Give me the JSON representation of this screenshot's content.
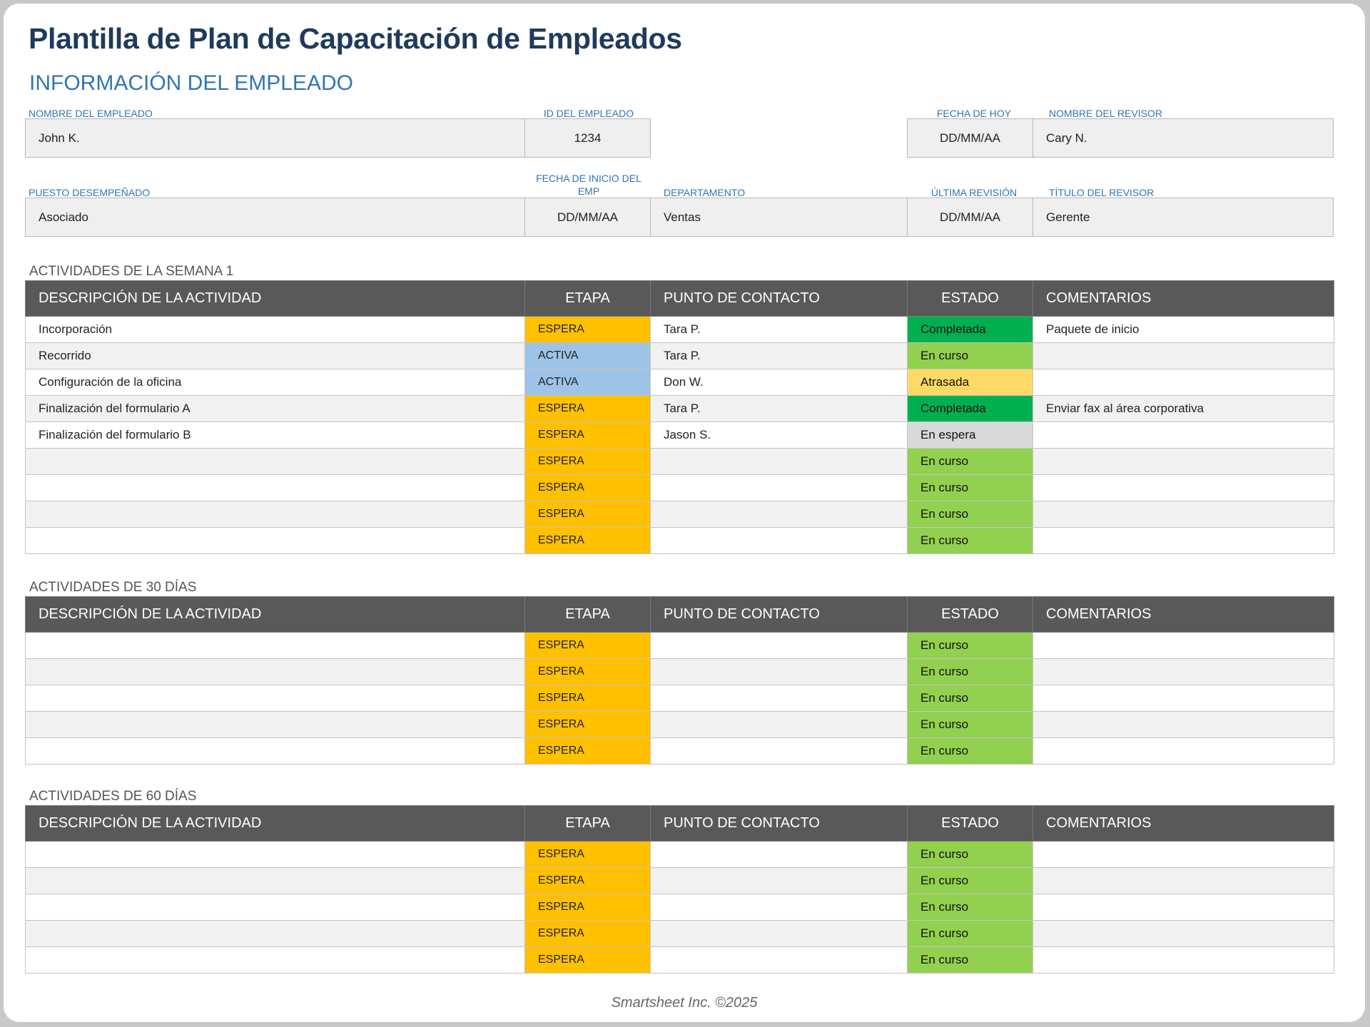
{
  "title": "Plantilla de Plan de Capacitación de Empleados",
  "employee_info": {
    "section_title": "INFORMACIÓN DEL EMPLEADO",
    "labels": {
      "employee_name": "NOMBRE DEL EMPLEADO",
      "employee_id": "ID DEL EMPLEADO",
      "today_date": "FECHA DE HOY",
      "reviewer_name": "NOMBRE DEL REVISOR",
      "position": "PUESTO DESEMPEÑADO",
      "start_date_line1": "FECHA DE INICIO DEL",
      "start_date_line2": "EMP",
      "department": "DEPARTAMENTO",
      "last_review": "ÚLTIMA REVISIÓN",
      "reviewer_title": "TÍTULO DEL REVISOR"
    },
    "values": {
      "employee_name": "John K.",
      "employee_id": "1234",
      "today_date": "DD/MM/AA",
      "reviewer_name": "Cary N.",
      "position": "Asociado",
      "start_date": "DD/MM/AA",
      "department": "Ventas",
      "last_review": "DD/MM/AA",
      "reviewer_title": "Gerente"
    }
  },
  "table_headers": {
    "description": "DESCRIPCIÓN DE LA ACTIVIDAD",
    "stage": "ETAPA",
    "contact": "PUNTO DE CONTACTO",
    "status": "ESTADO",
    "comments": "COMENTARIOS"
  },
  "week1": {
    "caption": "ACTIVIDADES DE LA SEMANA 1",
    "rows": [
      {
        "description": "Incorporación",
        "stage": "ESPERA",
        "contact": "Tara P.",
        "status": "Completada",
        "comments": "Paquete de inicio"
      },
      {
        "description": "Recorrido",
        "stage": "ACTIVA",
        "contact": "Tara P.",
        "status": "En curso",
        "comments": ""
      },
      {
        "description": "Configuración de la oficina",
        "stage": "ACTIVA",
        "contact": "Don W.",
        "status": "Atrasada",
        "comments": ""
      },
      {
        "description": "Finalización del formulario A",
        "stage": "ESPERA",
        "contact": "Tara P.",
        "status": "Completada",
        "comments": "Enviar fax al área corporativa"
      },
      {
        "description": "Finalización del formulario B",
        "stage": "ESPERA",
        "contact": "Jason S.",
        "status": "En espera",
        "comments": ""
      },
      {
        "description": "",
        "stage": "ESPERA",
        "contact": "",
        "status": "En curso",
        "comments": ""
      },
      {
        "description": "",
        "stage": "ESPERA",
        "contact": "",
        "status": "En curso",
        "comments": ""
      },
      {
        "description": "",
        "stage": "ESPERA",
        "contact": "",
        "status": "En curso",
        "comments": ""
      },
      {
        "description": "",
        "stage": "ESPERA",
        "contact": "",
        "status": "En curso",
        "comments": ""
      }
    ]
  },
  "days30": {
    "caption": "ACTIVIDADES DE 30 DÍAS",
    "rows": [
      {
        "description": "",
        "stage": "ESPERA",
        "contact": "",
        "status": "En curso",
        "comments": ""
      },
      {
        "description": "",
        "stage": "ESPERA",
        "contact": "",
        "status": "En curso",
        "comments": ""
      },
      {
        "description": "",
        "stage": "ESPERA",
        "contact": "",
        "status": "En curso",
        "comments": ""
      },
      {
        "description": "",
        "stage": "ESPERA",
        "contact": "",
        "status": "En curso",
        "comments": ""
      },
      {
        "description": "",
        "stage": "ESPERA",
        "contact": "",
        "status": "En curso",
        "comments": ""
      }
    ]
  },
  "days60": {
    "caption": "ACTIVIDADES DE 60 DÍAS",
    "rows": [
      {
        "description": "",
        "stage": "ESPERA",
        "contact": "",
        "status": "En curso",
        "comments": ""
      },
      {
        "description": "",
        "stage": "ESPERA",
        "contact": "",
        "status": "En curso",
        "comments": ""
      },
      {
        "description": "",
        "stage": "ESPERA",
        "contact": "",
        "status": "En curso",
        "comments": ""
      },
      {
        "description": "",
        "stage": "ESPERA",
        "contact": "",
        "status": "En curso",
        "comments": ""
      },
      {
        "description": "",
        "stage": "ESPERA",
        "contact": "",
        "status": "En curso",
        "comments": ""
      }
    ]
  },
  "colors": {
    "title": "#1f3a5c",
    "accent": "#2e75b6",
    "header_bg": "#595959",
    "stage_espera": "#ffc000",
    "stage_activa": "#9dc3e6",
    "status_completada": "#00b050",
    "status_en_curso": "#92d050",
    "status_atrasada": "#ffd966",
    "status_en_espera": "#d9d9d9"
  },
  "footer": "Smartsheet Inc. ©2025"
}
